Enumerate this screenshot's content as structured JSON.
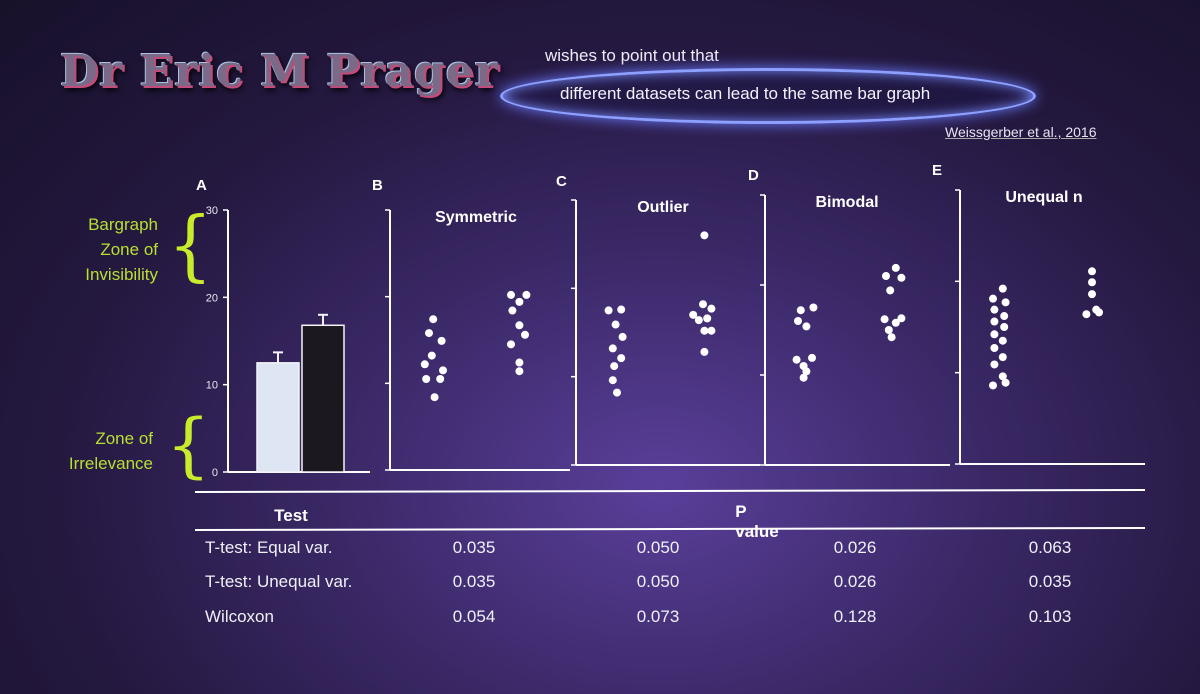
{
  "header": {
    "logo_text": "Dr Eric M Prager",
    "line1": "wishes to point out that",
    "line2": "different datasets can lead to the same bar graph",
    "citation": "Weissgerber et al., 2016"
  },
  "zones": {
    "top": [
      "Bargraph",
      "Zone of",
      "Invisibility"
    ],
    "bottom": [
      "Zone of",
      "Irrelevance"
    ]
  },
  "colors": {
    "zone_label": "#b8e030",
    "bar_light": "#dfe6f3",
    "bar_dark": "#1c1820",
    "axis": "#ffffff",
    "dot": "#ffffff"
  },
  "chart_data": [
    {
      "type": "bar",
      "panel": "A",
      "categories": [
        "",
        ""
      ],
      "values": [
        12.5,
        16.8
      ],
      "error": [
        1.2,
        1.2
      ],
      "colors": [
        "#dfe6f3",
        "#1c1820"
      ],
      "ylim": [
        0,
        30
      ],
      "yticks": [
        0,
        10,
        20,
        30
      ]
    },
    {
      "type": "scatter",
      "panel": "B",
      "title": "Symmetric",
      "groups": [
        [
          {
            "x": -0.2,
            "y": 17.4
          },
          {
            "x": -0.5,
            "y": 15.8
          },
          {
            "x": 0.4,
            "y": 14.9
          },
          {
            "x": -0.3,
            "y": 13.2
          },
          {
            "x": -0.8,
            "y": 12.2
          },
          {
            "x": 0.5,
            "y": 11.5
          },
          {
            "x": -0.7,
            "y": 10.5
          },
          {
            "x": 0.3,
            "y": 10.5
          },
          {
            "x": -0.1,
            "y": 8.4
          }
        ],
        [
          {
            "x": -0.5,
            "y": 20.2
          },
          {
            "x": 0.6,
            "y": 20.2
          },
          {
            "x": 0.1,
            "y": 19.4
          },
          {
            "x": -0.4,
            "y": 18.4
          },
          {
            "x": 0.1,
            "y": 16.7
          },
          {
            "x": 0.5,
            "y": 15.6
          },
          {
            "x": -0.5,
            "y": 14.5
          },
          {
            "x": 0.1,
            "y": 12.4
          },
          {
            "x": 0.1,
            "y": 11.4
          }
        ]
      ],
      "ylim": [
        0,
        30
      ]
    },
    {
      "type": "scatter",
      "panel": "C",
      "title": "Outlier",
      "groups": [
        [
          {
            "x": -0.6,
            "y": 17.5
          },
          {
            "x": 0.3,
            "y": 17.6
          },
          {
            "x": -0.1,
            "y": 15.9
          },
          {
            "x": 0.4,
            "y": 14.5
          },
          {
            "x": -0.3,
            "y": 13.2
          },
          {
            "x": 0.3,
            "y": 12.1
          },
          {
            "x": -0.2,
            "y": 11.2
          },
          {
            "x": -0.3,
            "y": 9.6
          },
          {
            "x": 0.0,
            "y": 8.2
          }
        ],
        [
          {
            "x": 0.1,
            "y": 26.0
          },
          {
            "x": 0.0,
            "y": 18.2
          },
          {
            "x": 0.6,
            "y": 17.7
          },
          {
            "x": -0.7,
            "y": 17.0
          },
          {
            "x": 0.3,
            "y": 16.6
          },
          {
            "x": -0.3,
            "y": 16.4
          },
          {
            "x": 0.1,
            "y": 15.2
          },
          {
            "x": 0.6,
            "y": 15.2
          },
          {
            "x": 0.1,
            "y": 12.8
          }
        ]
      ],
      "ylim": [
        0,
        30
      ]
    },
    {
      "type": "scatter",
      "panel": "D",
      "title": "Bimodal",
      "groups": [
        [
          {
            "x": -0.3,
            "y": 17.2
          },
          {
            "x": 0.6,
            "y": 17.5
          },
          {
            "x": -0.5,
            "y": 16.0
          },
          {
            "x": 0.1,
            "y": 15.4
          },
          {
            "x": -0.6,
            "y": 11.7
          },
          {
            "x": 0.5,
            "y": 11.9
          },
          {
            "x": -0.1,
            "y": 11.0
          },
          {
            "x": 0.1,
            "y": 10.4
          },
          {
            "x": -0.1,
            "y": 9.7
          }
        ],
        [
          {
            "x": 0.2,
            "y": 21.9
          },
          {
            "x": -0.5,
            "y": 21.0
          },
          {
            "x": 0.6,
            "y": 20.8
          },
          {
            "x": -0.2,
            "y": 19.4
          },
          {
            "x": -0.6,
            "y": 16.2
          },
          {
            "x": 0.6,
            "y": 16.3
          },
          {
            "x": 0.2,
            "y": 15.8
          },
          {
            "x": -0.3,
            "y": 15.0
          },
          {
            "x": -0.1,
            "y": 14.2
          }
        ]
      ],
      "ylim": [
        0,
        30
      ]
    },
    {
      "type": "scatter",
      "panel": "E",
      "title": "Unequal n",
      "groups": [
        [
          {
            "x": 0.2,
            "y": 19.2
          },
          {
            "x": -0.5,
            "y": 18.1
          },
          {
            "x": 0.4,
            "y": 17.7
          },
          {
            "x": -0.4,
            "y": 16.9
          },
          {
            "x": 0.3,
            "y": 16.2
          },
          {
            "x": -0.4,
            "y": 15.6
          },
          {
            "x": 0.3,
            "y": 15.0
          },
          {
            "x": -0.4,
            "y": 14.2
          },
          {
            "x": 0.2,
            "y": 13.5
          },
          {
            "x": -0.4,
            "y": 12.7
          },
          {
            "x": 0.2,
            "y": 11.7
          },
          {
            "x": -0.4,
            "y": 10.9
          },
          {
            "x": 0.2,
            "y": 9.6
          },
          {
            "x": -0.5,
            "y": 8.6
          },
          {
            "x": 0.4,
            "y": 8.9
          }
        ],
        [
          {
            "x": 0.0,
            "y": 21.1
          },
          {
            "x": 0.0,
            "y": 19.9
          },
          {
            "x": 0.0,
            "y": 18.6
          },
          {
            "x": 0.3,
            "y": 16.9
          },
          {
            "x": -0.4,
            "y": 16.4
          },
          {
            "x": 0.5,
            "y": 16.6
          }
        ]
      ],
      "ylim": [
        0,
        30
      ]
    },
    {
      "type": "table",
      "columns": [
        "Test",
        "P value"
      ],
      "rows": [
        {
          "test": "T-test: Equal var.",
          "values": [
            "0.035",
            "0.050",
            "0.026",
            "0.063"
          ]
        },
        {
          "test": "T-test: Unequal var.",
          "values": [
            "0.035",
            "0.050",
            "0.026",
            "0.035"
          ]
        },
        {
          "test": "Wilcoxon",
          "values": [
            "0.054",
            "0.073",
            "0.128",
            "0.103"
          ]
        }
      ]
    }
  ]
}
